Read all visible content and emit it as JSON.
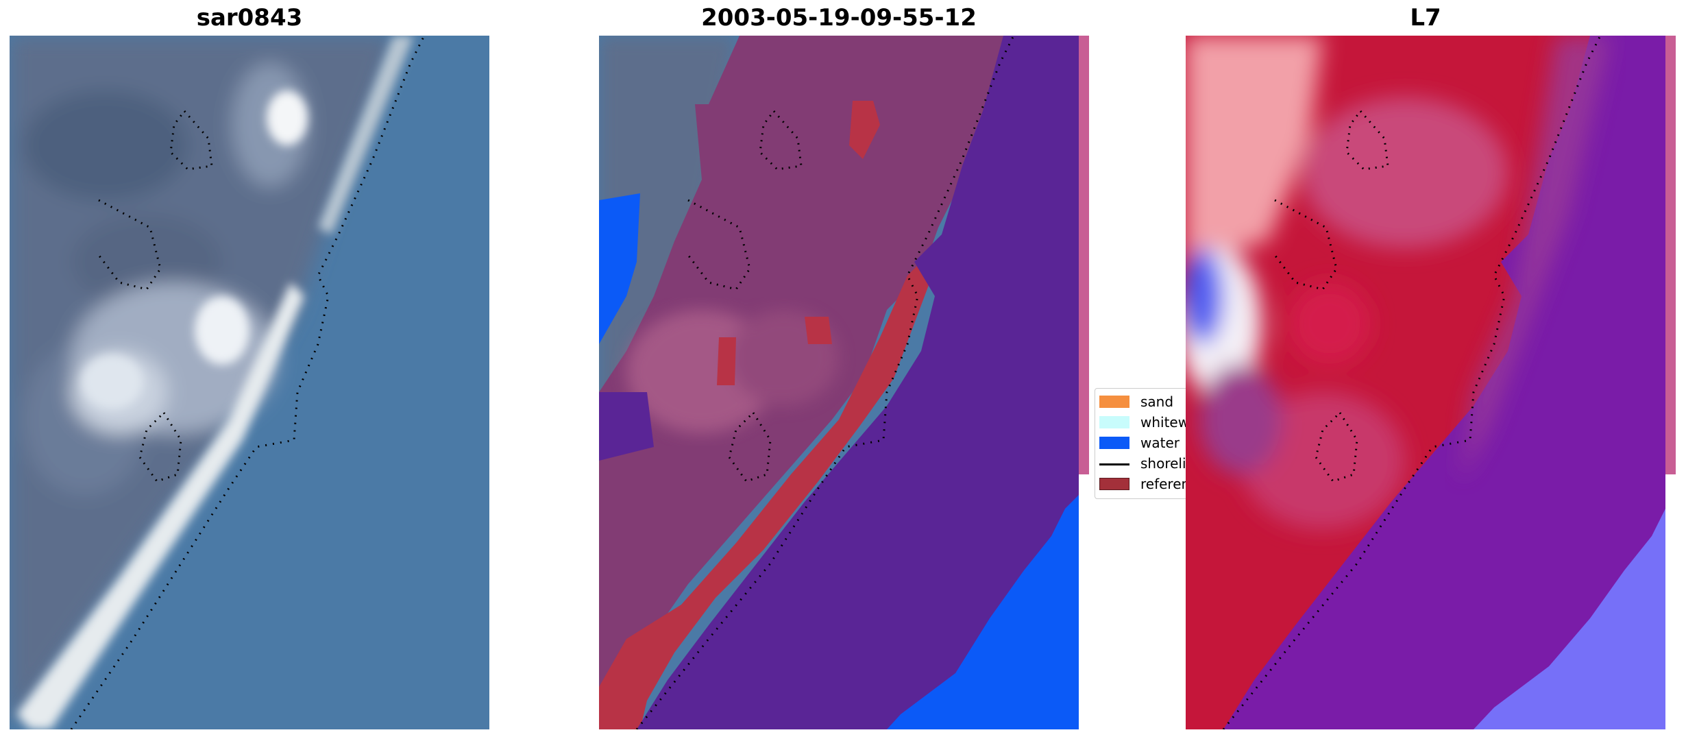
{
  "panels": [
    {
      "title": "sar0843"
    },
    {
      "title": "2003-05-19-09-55-12"
    },
    {
      "title": "L7"
    }
  ],
  "legend": {
    "items": [
      {
        "label": "sand",
        "color": "#f58f3f"
      },
      {
        "label": "whitewater",
        "color": "#c8fcfc"
      },
      {
        "label": "water",
        "color": "#0b5af7"
      },
      {
        "label": "shoreline",
        "color": "#000000"
      },
      {
        "label": "reference",
        "color": "#a3303a"
      }
    ]
  },
  "colors": {
    "ocean_rgb": "#4b7aa6",
    "land_rgb": "#5d6e8c",
    "beach_rgb": "#eef0f0",
    "ocean_class": "#5a2596",
    "land_class": "#823c74",
    "sand_class": "#b83346",
    "water_class": "#0b5af7",
    "mndwi_land": "#c5163a",
    "mndwi_water": "#7a1ca8",
    "mndwi_deep": "#7670f8"
  },
  "icons": [
    "shoreline-dotted-line",
    "reference-contour"
  ]
}
